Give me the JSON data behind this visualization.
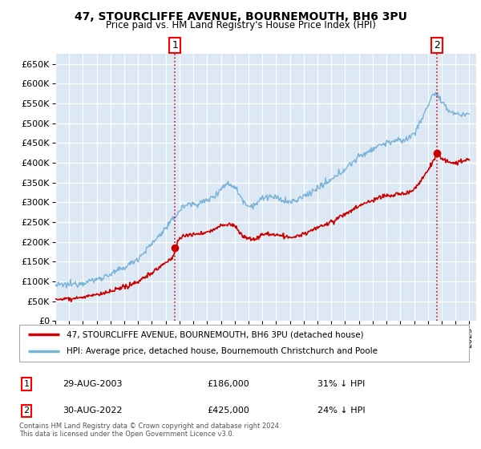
{
  "title": "47, STOURCLIFFE AVENUE, BOURNEMOUTH, BH6 3PU",
  "subtitle": "Price paid vs. HM Land Registry's House Price Index (HPI)",
  "ylabel_ticks": [
    "£0",
    "£50K",
    "£100K",
    "£150K",
    "£200K",
    "£250K",
    "£300K",
    "£350K",
    "£400K",
    "£450K",
    "£500K",
    "£550K",
    "£600K",
    "£650K"
  ],
  "ytick_values": [
    0,
    50000,
    100000,
    150000,
    200000,
    250000,
    300000,
    350000,
    400000,
    450000,
    500000,
    550000,
    600000,
    650000
  ],
  "ylim": [
    0,
    675000
  ],
  "background_color": "#dce9f5",
  "fig_bg_color": "#ffffff",
  "hpi_color": "#7ab3d8",
  "price_color": "#cc0000",
  "marker1_year": 2003.67,
  "marker1_price": 186000,
  "marker2_year": 2022.67,
  "marker2_price": 425000,
  "legend_line1": "47, STOURCLIFFE AVENUE, BOURNEMOUTH, BH6 3PU (detached house)",
  "legend_line2": "HPI: Average price, detached house, Bournemouth Christchurch and Poole",
  "annotation1_label": "1",
  "annotation1_date": "29-AUG-2003",
  "annotation1_price": "£186,000",
  "annotation1_hpi": "31% ↓ HPI",
  "annotation2_label": "2",
  "annotation2_date": "30-AUG-2022",
  "annotation2_price": "£425,000",
  "annotation2_hpi": "24% ↓ HPI",
  "footer": "Contains HM Land Registry data © Crown copyright and database right 2024.\nThis data is licensed under the Open Government Licence v3.0.",
  "xlim_start": 1995.0,
  "xlim_end": 2025.5
}
